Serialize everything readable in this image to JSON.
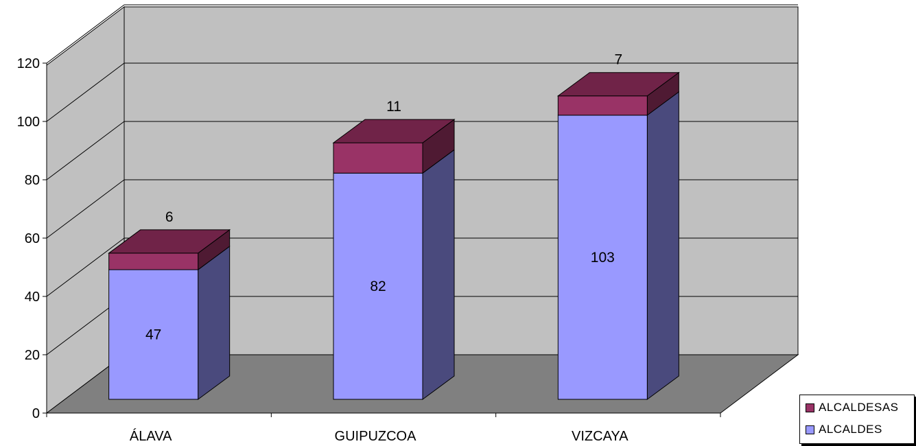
{
  "chart_data": {
    "type": "bar",
    "stacked": true,
    "three_d": true,
    "categories": [
      "ÁLAVA",
      "GUIPUZCOA",
      "VIZCAYA"
    ],
    "series": [
      {
        "name": "ALCALDES",
        "values": [
          47,
          82,
          103
        ],
        "color": "#9999ff",
        "side_color": "#4a4a7d"
      },
      {
        "name": "ALCALDESAS",
        "values": [
          6,
          11,
          7
        ],
        "color": "#993366",
        "side_color": "#4f1a33",
        "top_color": "#702348"
      }
    ],
    "ylim": [
      0,
      120
    ],
    "yticks": [
      "0",
      "20",
      "40",
      "60",
      "80",
      "100",
      "120"
    ],
    "grid": true,
    "legend_position": "bottom-right",
    "title": "",
    "xlabel": "",
    "ylabel": ""
  },
  "colors": {
    "wall": "#c0c0c0",
    "floor": "#808080",
    "gridline": "#000000"
  }
}
